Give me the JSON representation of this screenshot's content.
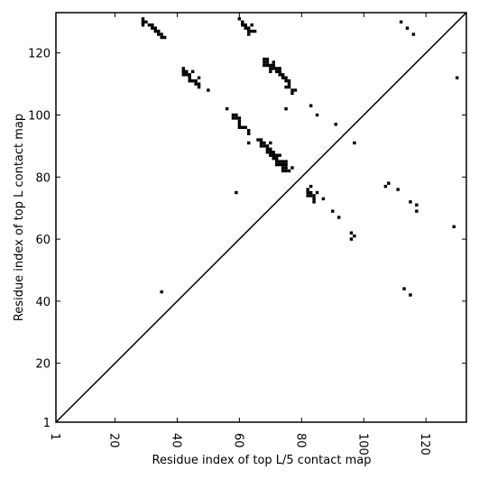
{
  "chart_data": {
    "type": "heatmap",
    "title": "",
    "xlabel": "Residue index of top L/5 contact map",
    "ylabel": "Residue index of top L contact map",
    "xlim": [
      1,
      133
    ],
    "ylim": [
      1,
      133
    ],
    "xticks": [
      1,
      20,
      40,
      60,
      80,
      100,
      120
    ],
    "yticks": [
      1,
      20,
      40,
      60,
      80,
      100,
      120
    ],
    "xtick_rotation": "vertical",
    "diagonal": true,
    "cell_color": "#000000",
    "background_color": "#ffffff",
    "cells": [
      [
        29,
        131
      ],
      [
        29,
        130
      ],
      [
        29,
        129
      ],
      [
        30,
        130
      ],
      [
        31,
        129
      ],
      [
        32,
        129
      ],
      [
        32,
        128
      ],
      [
        33,
        128
      ],
      [
        33,
        127
      ],
      [
        34,
        127
      ],
      [
        34,
        126
      ],
      [
        35,
        126
      ],
      [
        35,
        125
      ],
      [
        36,
        125
      ],
      [
        42,
        115
      ],
      [
        42,
        114
      ],
      [
        42,
        113
      ],
      [
        43,
        114
      ],
      [
        43,
        113
      ],
      [
        44,
        113
      ],
      [
        44,
        112
      ],
      [
        44,
        111
      ],
      [
        45,
        114
      ],
      [
        45,
        111
      ],
      [
        46,
        111
      ],
      [
        46,
        110
      ],
      [
        47,
        110
      ],
      [
        47,
        109
      ],
      [
        47,
        112
      ],
      [
        50,
        108
      ],
      [
        60,
        131
      ],
      [
        61,
        130
      ],
      [
        61,
        129
      ],
      [
        62,
        129
      ],
      [
        62,
        128
      ],
      [
        63,
        128
      ],
      [
        63,
        127
      ],
      [
        63,
        126
      ],
      [
        64,
        129
      ],
      [
        64,
        127
      ],
      [
        65,
        127
      ],
      [
        68,
        118
      ],
      [
        68,
        117
      ],
      [
        68,
        116
      ],
      [
        69,
        118
      ],
      [
        69,
        117
      ],
      [
        69,
        116
      ],
      [
        70,
        116
      ],
      [
        70,
        115
      ],
      [
        70,
        114
      ],
      [
        71,
        117
      ],
      [
        71,
        116
      ],
      [
        71,
        115
      ],
      [
        72,
        115
      ],
      [
        72,
        114
      ],
      [
        73,
        115
      ],
      [
        73,
        114
      ],
      [
        73,
        113
      ],
      [
        74,
        113
      ],
      [
        74,
        112
      ],
      [
        75,
        112
      ],
      [
        75,
        111
      ],
      [
        75,
        109
      ],
      [
        76,
        111
      ],
      [
        76,
        110
      ],
      [
        76,
        109
      ],
      [
        77,
        108
      ],
      [
        77,
        107
      ],
      [
        78,
        108
      ],
      [
        56,
        102
      ],
      [
        58,
        100
      ],
      [
        58,
        99
      ],
      [
        59,
        100
      ],
      [
        59,
        99
      ],
      [
        60,
        99
      ],
      [
        60,
        98
      ],
      [
        60,
        97
      ],
      [
        60,
        96
      ],
      [
        61,
        96
      ],
      [
        62,
        96
      ],
      [
        63,
        95
      ],
      [
        63,
        94
      ],
      [
        63,
        91
      ],
      [
        75,
        102
      ],
      [
        83,
        103
      ],
      [
        85,
        100
      ],
      [
        91,
        97
      ],
      [
        97,
        91
      ],
      [
        66,
        92
      ],
      [
        67,
        92
      ],
      [
        67,
        91
      ],
      [
        67,
        90
      ],
      [
        68,
        91
      ],
      [
        68,
        90
      ],
      [
        69,
        90
      ],
      [
        69,
        89
      ],
      [
        69,
        88
      ],
      [
        70,
        91
      ],
      [
        70,
        89
      ],
      [
        70,
        88
      ],
      [
        70,
        87
      ],
      [
        71,
        88
      ],
      [
        71,
        87
      ],
      [
        71,
        86
      ],
      [
        72,
        87
      ],
      [
        72,
        86
      ],
      [
        72,
        85
      ],
      [
        72,
        84
      ],
      [
        73,
        87
      ],
      [
        73,
        85
      ],
      [
        73,
        84
      ],
      [
        74,
        85
      ],
      [
        74,
        84
      ],
      [
        74,
        83
      ],
      [
        74,
        82
      ],
      [
        75,
        85
      ],
      [
        75,
        84
      ],
      [
        75,
        83
      ],
      [
        75,
        82
      ],
      [
        76,
        82
      ],
      [
        77,
        83
      ],
      [
        59,
        75
      ],
      [
        82,
        76
      ],
      [
        82,
        75
      ],
      [
        82,
        74
      ],
      [
        83,
        77
      ],
      [
        83,
        75
      ],
      [
        83,
        74
      ],
      [
        84,
        74
      ],
      [
        84,
        73
      ],
      [
        84,
        72
      ],
      [
        85,
        75
      ],
      [
        87,
        73
      ],
      [
        90,
        69
      ],
      [
        92,
        67
      ],
      [
        96,
        62
      ],
      [
        96,
        60
      ],
      [
        97,
        61
      ],
      [
        107,
        77
      ],
      [
        108,
        78
      ],
      [
        111,
        76
      ],
      [
        115,
        72
      ],
      [
        117,
        71
      ],
      [
        117,
        69
      ],
      [
        129,
        64
      ],
      [
        130,
        112
      ],
      [
        112,
        130
      ],
      [
        114,
        128
      ],
      [
        116,
        126
      ],
      [
        113,
        44
      ],
      [
        115,
        42
      ],
      [
        35,
        43
      ]
    ]
  }
}
